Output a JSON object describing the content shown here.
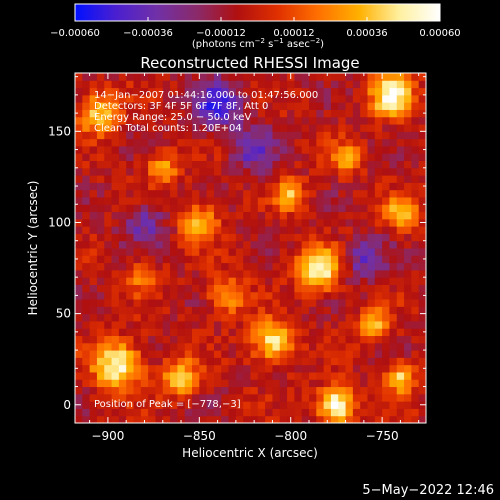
{
  "chart_data": {
    "type": "heatmap",
    "title": "Reconstructed RHESSI Image",
    "xlabel": "Heliocentric X (arcsec)",
    "ylabel": "Heliocentric Y (arcsec)",
    "xlim": [
      -918,
      -726
    ],
    "ylim": [
      -10,
      182
    ],
    "x_ticks": [
      -900,
      -850,
      -800,
      -750
    ],
    "x_tick_labels": [
      "−900",
      "−850",
      "−800",
      "−750"
    ],
    "y_ticks": [
      0,
      50,
      100,
      150
    ],
    "y_tick_labels": [
      "0",
      "50",
      "100",
      "150"
    ],
    "colorbar": {
      "min": -0.0006,
      "max": 0.0006,
      "ticks": [
        -0.0006,
        -0.00036,
        -0.00012,
        0.00012,
        0.00036,
        0.0006
      ],
      "tick_labels": [
        "−0.00060",
        "−0.00036",
        "−0.00012",
        "0.00012",
        "0.00036",
        "0.00060"
      ],
      "label_parts": [
        "(photons cm",
        "−2",
        " s",
        "−1",
        " asec",
        "−2",
        ")"
      ],
      "colormap": [
        "#0010ff",
        "#4a1fd0",
        "#7030a8",
        "#8a2a6a",
        "#b01010",
        "#e03000",
        "#ff7000",
        "#ffb000",
        "#fff0a0",
        "#ffffff"
      ]
    },
    "annotations": [
      "14−Jan−2007 01:44:16.000 to 01:47:56.000",
      "Detectors: 3F 4F 5F 6F 7F 8F, Att 0",
      "Energy Range: 25.0 − 50.0 keV",
      "Clean    Total counts: 1.20E+04"
    ],
    "peak_label": "Position of Peak = [−778,−3]",
    "peak": [
      -778,
      -3
    ],
    "grid_size": [
      48,
      48
    ],
    "hot_spots": [
      {
        "x": -785,
        "y": 75,
        "amp": 0.00062,
        "r": 8
      },
      {
        "x": -775,
        "y": 0,
        "amp": 0.00065,
        "r": 7
      },
      {
        "x": -895,
        "y": 22,
        "amp": 0.0006,
        "r": 9
      },
      {
        "x": -905,
        "y": 160,
        "amp": 0.00045,
        "r": 8
      },
      {
        "x": -745,
        "y": 170,
        "amp": 0.0006,
        "r": 8
      },
      {
        "x": -740,
        "y": 105,
        "amp": 0.00045,
        "r": 6
      },
      {
        "x": -810,
        "y": 35,
        "amp": 0.00052,
        "r": 8
      },
      {
        "x": -850,
        "y": 100,
        "amp": 0.00042,
        "r": 7
      },
      {
        "x": -835,
        "y": 60,
        "amp": 0.00038,
        "r": 7
      },
      {
        "x": -870,
        "y": 130,
        "amp": 0.00035,
        "r": 6
      },
      {
        "x": -800,
        "y": 115,
        "amp": 0.0004,
        "r": 6
      },
      {
        "x": -860,
        "y": 15,
        "amp": 0.00045,
        "r": 7
      },
      {
        "x": -770,
        "y": 135,
        "amp": 0.00035,
        "r": 6
      },
      {
        "x": -755,
        "y": 45,
        "amp": 0.0004,
        "r": 6
      },
      {
        "x": -880,
        "y": 70,
        "amp": 0.0003,
        "r": 6
      },
      {
        "x": -740,
        "y": 15,
        "amp": 0.00045,
        "r": 6
      }
    ],
    "cold_spots": [
      {
        "x": -840,
        "y": 165,
        "amp": -0.0004,
        "r": 10
      },
      {
        "x": -760,
        "y": 80,
        "amp": -0.0003,
        "r": 8
      },
      {
        "x": -880,
        "y": 100,
        "amp": -0.00028,
        "r": 8
      },
      {
        "x": -820,
        "y": 140,
        "amp": -0.00032,
        "r": 8
      }
    ]
  },
  "footer": {
    "date": "5−May−2022 12:46"
  }
}
